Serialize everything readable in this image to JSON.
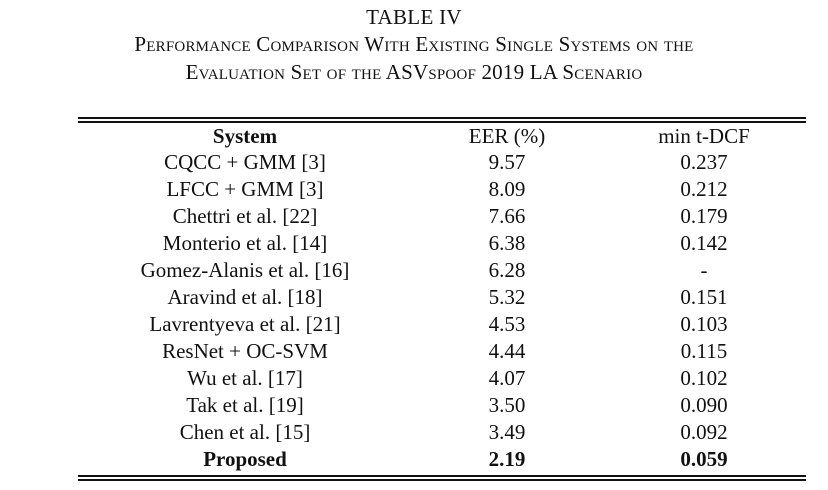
{
  "caption": {
    "label": "TABLE IV",
    "line1": "Performance Comparison With Existing Single Systems on the",
    "line2": "Evaluation Set of the ASVspoof 2019 LA Scenario"
  },
  "table": {
    "headers": [
      "System",
      "EER (%)",
      "min t-DCF"
    ],
    "rows": [
      [
        "CQCC + GMM [3]",
        "9.57",
        "0.237"
      ],
      [
        "LFCC + GMM [3]",
        "8.09",
        "0.212"
      ],
      [
        "Chettri et al. [22]",
        "7.66",
        "0.179"
      ],
      [
        "Monterio et al. [14]",
        "6.38",
        "0.142"
      ],
      [
        "Gomez-Alanis et al. [16]",
        "6.28",
        "-"
      ],
      [
        "Aravind et al. [18]",
        "5.32",
        "0.151"
      ],
      [
        "Lavrentyeva et al. [21]",
        "4.53",
        "0.103"
      ],
      [
        "ResNet + OC-SVM",
        "4.44",
        "0.115"
      ],
      [
        "Wu et al. [17]",
        "4.07",
        "0.102"
      ],
      [
        "Tak et al. [19]",
        "3.50",
        "0.090"
      ],
      [
        "Chen et al. [15]",
        "3.49",
        "0.092"
      ],
      [
        "Proposed",
        "2.19",
        "0.059"
      ]
    ]
  }
}
